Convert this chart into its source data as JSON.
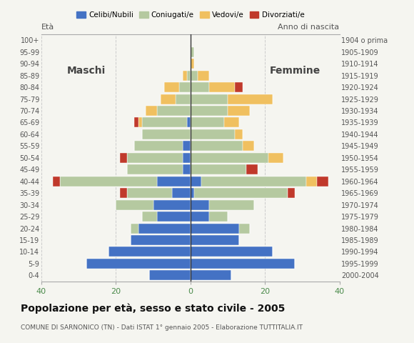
{
  "age_groups": [
    "0-4",
    "5-9",
    "10-14",
    "15-19",
    "20-24",
    "25-29",
    "30-34",
    "35-39",
    "40-44",
    "45-49",
    "50-54",
    "55-59",
    "60-64",
    "65-69",
    "70-74",
    "75-79",
    "80-84",
    "85-89",
    "90-94",
    "95-99",
    "100+"
  ],
  "birth_years": [
    "2000-2004",
    "1995-1999",
    "1990-1994",
    "1985-1989",
    "1980-1984",
    "1975-1979",
    "1970-1974",
    "1965-1969",
    "1960-1964",
    "1955-1959",
    "1950-1954",
    "1945-1949",
    "1940-1944",
    "1935-1939",
    "1930-1934",
    "1925-1929",
    "1920-1924",
    "1915-1919",
    "1910-1914",
    "1905-1909",
    "1904 o prima"
  ],
  "males": {
    "celibi": [
      11,
      28,
      22,
      16,
      14,
      9,
      10,
      5,
      9,
      2,
      2,
      2,
      0,
      1,
      0,
      0,
      0,
      0,
      0,
      0,
      0
    ],
    "coniugati": [
      0,
      0,
      0,
      0,
      2,
      4,
      10,
      12,
      26,
      15,
      15,
      13,
      13,
      12,
      9,
      4,
      3,
      1,
      0,
      0,
      0
    ],
    "vedovi": [
      0,
      0,
      0,
      0,
      0,
      0,
      0,
      0,
      0,
      0,
      0,
      0,
      0,
      1,
      3,
      4,
      4,
      1,
      0,
      0,
      0
    ],
    "divorziati": [
      0,
      0,
      0,
      0,
      0,
      0,
      0,
      2,
      2,
      0,
      2,
      0,
      0,
      1,
      0,
      0,
      0,
      0,
      0,
      0,
      0
    ]
  },
  "females": {
    "nubili": [
      11,
      28,
      22,
      13,
      13,
      5,
      5,
      1,
      3,
      0,
      0,
      0,
      0,
      0,
      0,
      0,
      0,
      0,
      0,
      0,
      0
    ],
    "coniugate": [
      0,
      0,
      0,
      0,
      3,
      5,
      12,
      25,
      28,
      15,
      21,
      14,
      12,
      9,
      10,
      10,
      5,
      2,
      0,
      1,
      0
    ],
    "vedove": [
      0,
      0,
      0,
      0,
      0,
      0,
      0,
      0,
      3,
      0,
      4,
      3,
      2,
      4,
      6,
      12,
      7,
      3,
      1,
      0,
      0
    ],
    "divorziate": [
      0,
      0,
      0,
      0,
      0,
      0,
      0,
      2,
      3,
      3,
      0,
      0,
      0,
      0,
      0,
      0,
      2,
      0,
      0,
      0,
      0
    ]
  },
  "colors": {
    "celibi": "#4472c4",
    "coniugati": "#b5c9a0",
    "vedovi": "#f0c060",
    "divorziati": "#c0392b"
  },
  "xlim": 40,
  "title": "Popolazione per età, sesso e stato civile - 2005",
  "subtitle": "COMUNE DI SARNONICO (TN) - Dati ISTAT 1° gennaio 2005 - Elaborazione TUTTITALIA.IT",
  "label_eta": "Età",
  "label_anno": "Anno di nascita",
  "label_maschi": "Maschi",
  "label_femmine": "Femmine",
  "legend_labels": [
    "Celibi/Nubili",
    "Coniugati/e",
    "Vedovi/e",
    "Divorziati/e"
  ],
  "bg_color": "#f5f5f0",
  "bar_height": 0.85
}
